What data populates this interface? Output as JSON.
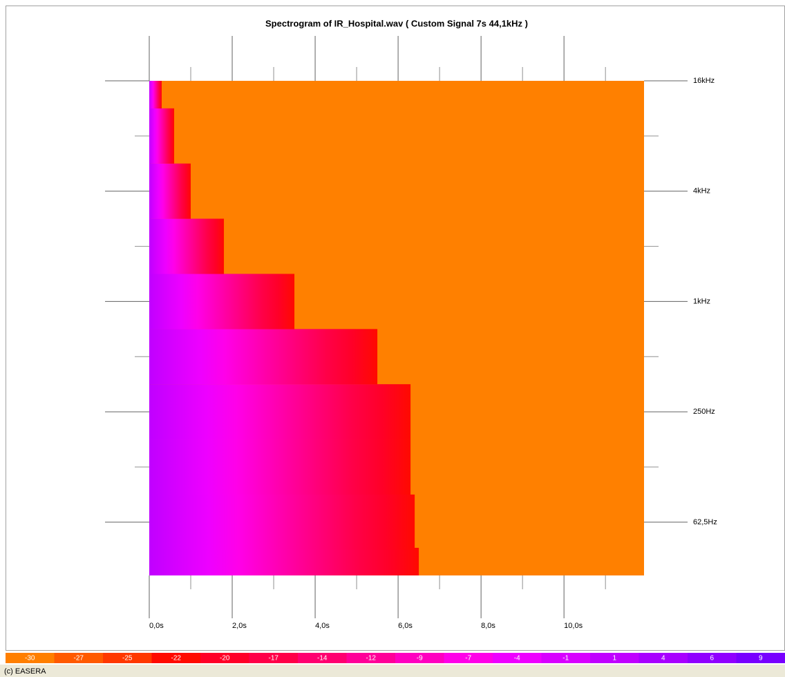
{
  "chart_data": {
    "type": "spectrogram",
    "title": "Spectrogram of IR_Hospital.wav ( Custom Signal 7s 44,1kHz )",
    "footer": "(c) EASERA",
    "y": [
      32,
      62.5,
      125,
      250,
      500,
      1000,
      2000,
      4000,
      8000,
      16000
    ],
    "values": [
      6.5,
      6.4,
      6.3,
      6.3,
      5.5,
      3.5,
      1.8,
      1.0,
      0.6,
      0.3
    ],
    "background": "#ff8000",
    "xlim": [
      0,
      11.93
    ],
    "xticks": [
      {
        "value": 0,
        "label": "0,0s"
      },
      {
        "value": 2,
        "label": "2,0s"
      },
      {
        "value": 4,
        "label": "4,0s"
      },
      {
        "value": 6,
        "label": "6,0s"
      },
      {
        "value": 8,
        "label": "8,0s"
      },
      {
        "value": 10,
        "label": "10,0s"
      }
    ],
    "xminor": [
      1,
      3,
      5,
      7,
      9,
      11
    ],
    "ylim": [
      32,
      16000
    ],
    "log_y": true,
    "yticks": [
      {
        "value": 16000,
        "label": "16kHz"
      },
      {
        "value": 4000,
        "label": "4kHz"
      },
      {
        "value": 1000,
        "label": "1kHz"
      },
      {
        "value": 250,
        "label": "250Hz"
      },
      {
        "value": 62.5,
        "label": "62,5Hz"
      }
    ],
    "yminor": [
      8000,
      2000,
      500,
      125
    ],
    "colorbar": {
      "values": [
        -30,
        -27,
        -25,
        -22,
        -20,
        -17,
        -14,
        -12,
        -9,
        -7,
        -4,
        -1,
        1,
        4,
        6,
        9
      ],
      "colors": [
        "#ff7f00",
        "#ff5a00",
        "#ff3800",
        "#ff0a00",
        "#ff0028",
        "#ff0048",
        "#ff0070",
        "#ff0098",
        "#ff00c0",
        "#ff00e8",
        "#ee00ff",
        "#d800ff",
        "#c000ff",
        "#a800ff",
        "#9000ff",
        "#7800ff"
      ]
    }
  }
}
